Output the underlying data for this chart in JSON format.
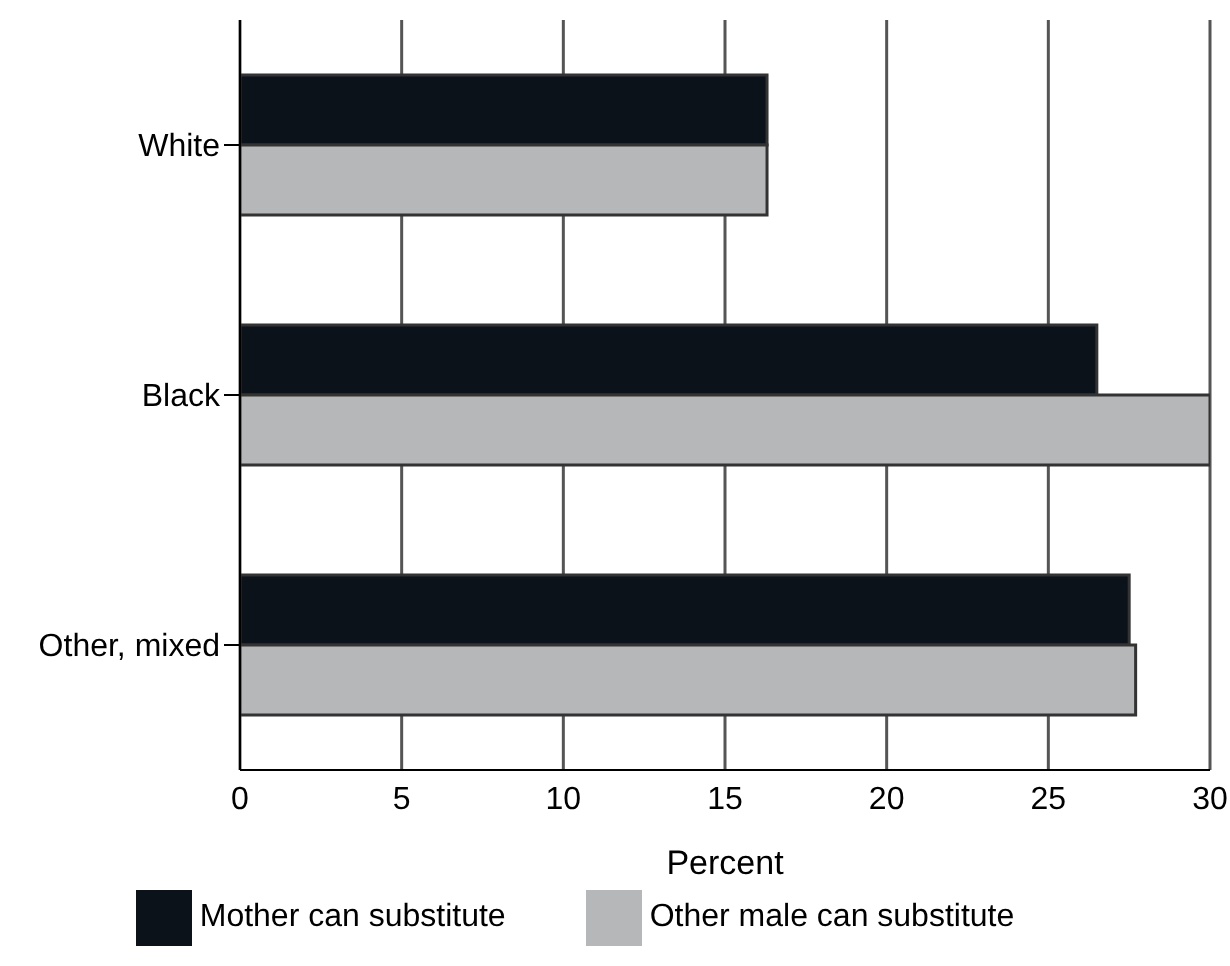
{
  "chart_data": {
    "type": "bar",
    "orientation": "horizontal",
    "xlabel": "Percent",
    "categories": [
      "White",
      "Black",
      "Other, mixed"
    ],
    "series": [
      {
        "name": "Mother can substitute",
        "color": "#0b121a",
        "values": [
          16.3,
          26.5,
          27.5
        ]
      },
      {
        "name": "Other male can substitute",
        "color": "#b6b7b9",
        "values": [
          16.3,
          30,
          27.7
        ]
      }
    ],
    "xlim": [
      0,
      30
    ],
    "xticks": [
      0,
      5,
      10,
      15,
      20,
      25,
      30
    ],
    "grid": "x",
    "legend": "bottom"
  }
}
